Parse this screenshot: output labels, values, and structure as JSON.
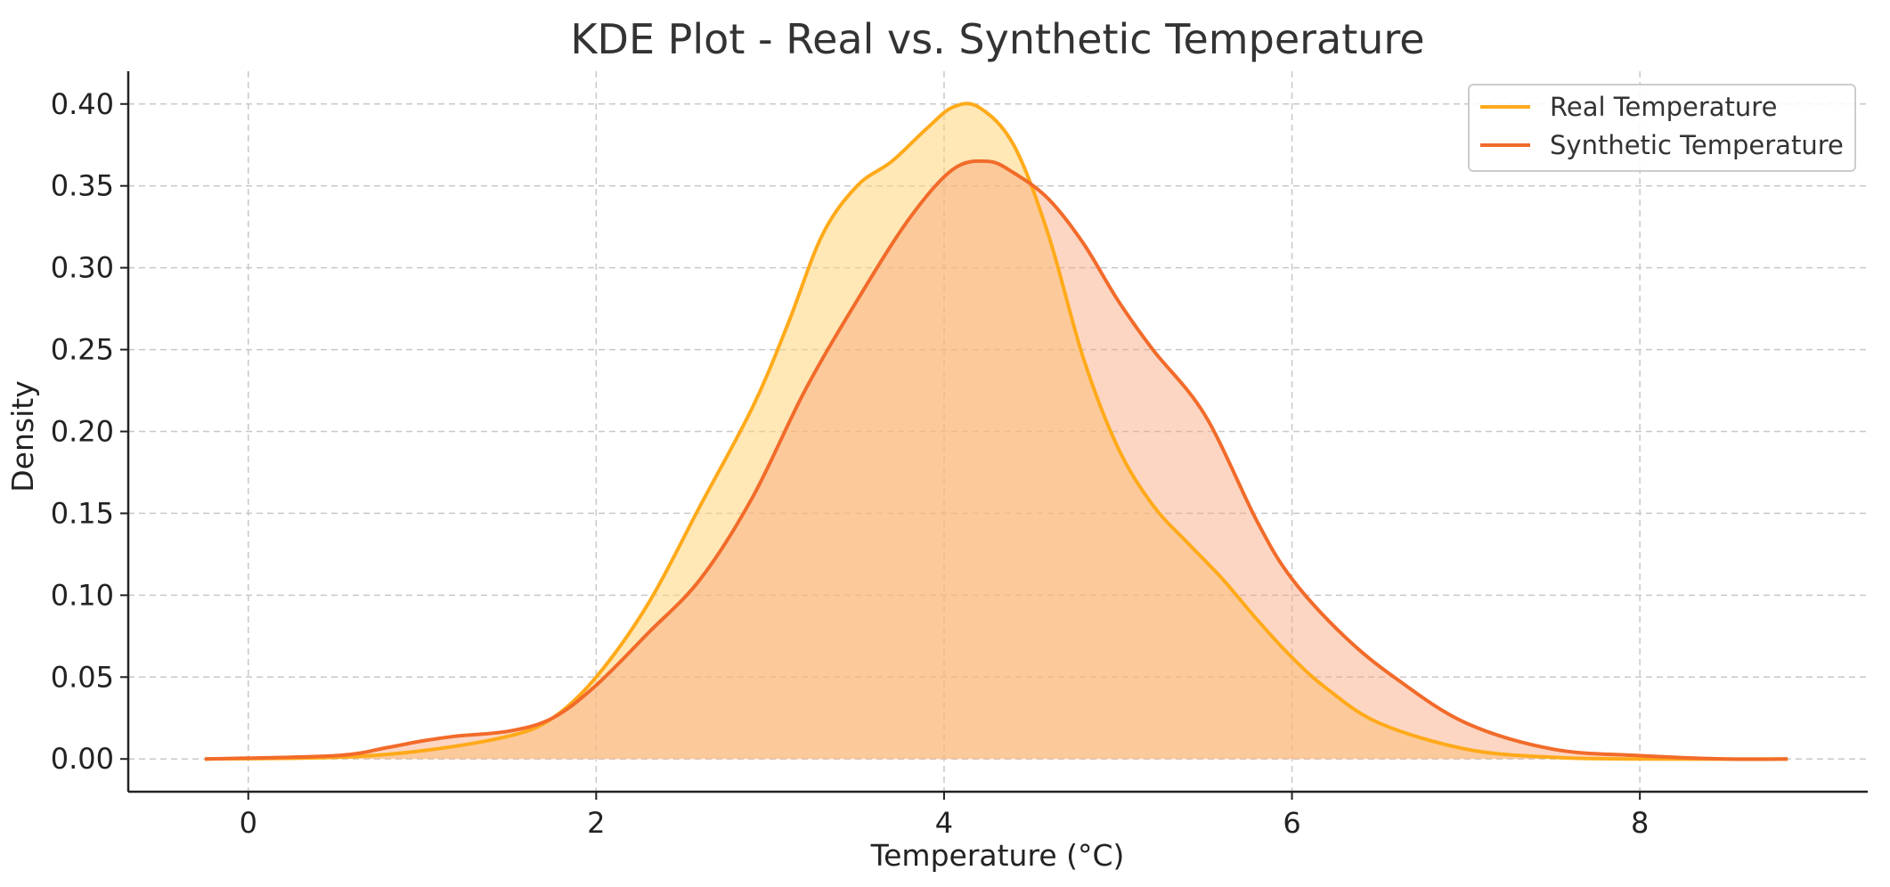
{
  "chart_data": {
    "type": "area",
    "title": "KDE Plot - Real vs. Synthetic Temperature",
    "xlabel": "Temperature (°C)",
    "ylabel": "Density",
    "xlim": [
      -0.69,
      9.31
    ],
    "ylim": [
      -0.02,
      0.42
    ],
    "xticks": [
      0,
      2,
      4,
      6,
      8
    ],
    "xtick_labels": [
      "0",
      "2",
      "4",
      "6",
      "8"
    ],
    "yticks": [
      0.0,
      0.05,
      0.1,
      0.15,
      0.2,
      0.25,
      0.3,
      0.35,
      0.4
    ],
    "ytick_labels": [
      "0.00",
      "0.05",
      "0.10",
      "0.15",
      "0.20",
      "0.25",
      "0.30",
      "0.35",
      "0.40"
    ],
    "grid": true,
    "legend_position": "top-right",
    "series": [
      {
        "name": "Real Temperature",
        "color": "#FFAA1A",
        "fill": "#FFD37A",
        "x": [
          -0.25,
          0.5,
          1.0,
          1.5,
          1.75,
          2.0,
          2.3,
          2.6,
          2.9,
          3.1,
          3.3,
          3.5,
          3.7,
          3.9,
          4.05,
          4.2,
          4.4,
          4.6,
          4.8,
          5.0,
          5.2,
          5.4,
          5.6,
          5.8,
          6.0,
          6.2,
          6.5,
          7.0,
          7.5,
          8.0,
          8.85
        ],
        "y": [
          0.0,
          0.001,
          0.005,
          0.014,
          0.025,
          0.05,
          0.095,
          0.155,
          0.215,
          0.265,
          0.32,
          0.35,
          0.365,
          0.385,
          0.398,
          0.398,
          0.375,
          0.32,
          0.245,
          0.19,
          0.155,
          0.132,
          0.11,
          0.085,
          0.062,
          0.043,
          0.022,
          0.006,
          0.001,
          0.0,
          0.0
        ]
      },
      {
        "name": "Synthetic Temperature",
        "color": "#F26B2A",
        "fill": "#F8A37A",
        "x": [
          -0.25,
          0.5,
          0.8,
          1.0,
          1.2,
          1.5,
          1.75,
          2.0,
          2.3,
          2.6,
          2.9,
          3.2,
          3.5,
          3.8,
          4.05,
          4.25,
          4.4,
          4.6,
          4.8,
          5.0,
          5.2,
          5.5,
          5.8,
          6.0,
          6.3,
          6.6,
          7.0,
          7.5,
          8.0,
          8.5,
          8.85
        ],
        "y": [
          0.0,
          0.002,
          0.007,
          0.011,
          0.014,
          0.017,
          0.025,
          0.045,
          0.077,
          0.11,
          0.16,
          0.225,
          0.28,
          0.33,
          0.36,
          0.365,
          0.358,
          0.342,
          0.315,
          0.28,
          0.25,
          0.21,
          0.145,
          0.11,
          0.075,
          0.049,
          0.022,
          0.006,
          0.002,
          0.0,
          0.0
        ]
      }
    ]
  }
}
